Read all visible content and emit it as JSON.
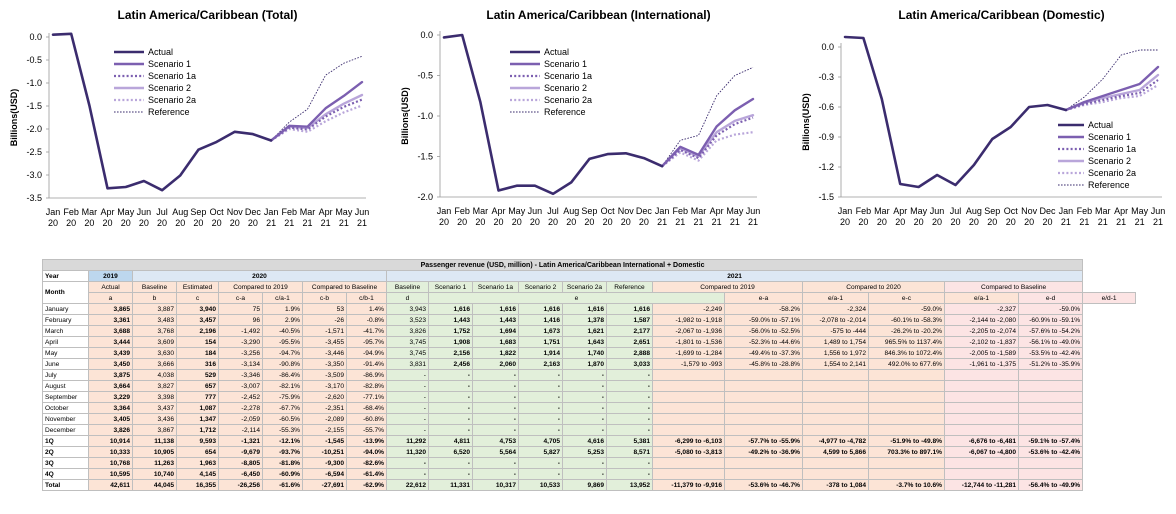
{
  "colors": {
    "actual": "#3b2c6e",
    "scenario1": "#7c5fb0",
    "scenario1a": "#7c5fb0",
    "scenario2": "#b9a6da",
    "scenario2a": "#b9a6da",
    "reference": "#3b2c6e"
  },
  "x_labels": [
    "Jan",
    "Feb",
    "Mar",
    "Apr",
    "May",
    "Jun",
    "Jul",
    "Aug",
    "Sep",
    "Oct",
    "Nov",
    "Dec",
    "Jan",
    "Feb",
    "Mar",
    "Apr",
    "May",
    "Jun"
  ],
  "x_years": [
    "20",
    "20",
    "20",
    "20",
    "20",
    "20",
    "20",
    "20",
    "20",
    "20",
    "20",
    "20",
    "21",
    "21",
    "21",
    "21",
    "21",
    "21"
  ],
  "legend_labels": [
    "Actual",
    "Scenario 1",
    "Scenario 1a",
    "Scenario 2",
    "Scenario 2a",
    "Reference"
  ],
  "chart_data": [
    {
      "type": "line",
      "title": "Latin America/Caribbean (Total)",
      "ylabel": "Billions(USD)",
      "ylim": [
        -3.5,
        0.0
      ],
      "yticks": [
        0.0,
        -0.5,
        -1.0,
        -1.5,
        -2.0,
        -2.5,
        -3.0,
        -3.5
      ],
      "ytick_labels": [
        "0.0",
        "-0.5",
        "-1.0",
        "-1.5",
        "-2.0",
        "-2.5",
        "-3.0",
        "-3.5"
      ],
      "legend_position": "top-left",
      "series": [
        {
          "name": "Actual",
          "values": [
            0.05,
            0.07,
            -1.49,
            -3.29,
            -3.26,
            -3.13,
            -3.33,
            -3.01,
            -2.45,
            -2.28,
            -2.06,
            -2.11,
            -2.25,
            null,
            null,
            null,
            null,
            null
          ]
        },
        {
          "name": "Scenario 1",
          "values": [
            null,
            null,
            null,
            null,
            null,
            null,
            null,
            null,
            null,
            null,
            null,
            null,
            -2.25,
            -1.93,
            -1.95,
            -1.55,
            -1.28,
            -0.98
          ]
        },
        {
          "name": "Scenario 1a",
          "values": [
            null,
            null,
            null,
            null,
            null,
            null,
            null,
            null,
            null,
            null,
            null,
            null,
            -2.25,
            -1.97,
            -2.01,
            -1.73,
            -1.52,
            -1.36
          ]
        },
        {
          "name": "Scenario 2",
          "values": [
            null,
            null,
            null,
            null,
            null,
            null,
            null,
            null,
            null,
            null,
            null,
            null,
            -2.25,
            -1.95,
            -1.98,
            -1.68,
            -1.45,
            -1.26
          ]
        },
        {
          "name": "Scenario 2a",
          "values": [
            null,
            null,
            null,
            null,
            null,
            null,
            null,
            null,
            null,
            null,
            null,
            null,
            -2.25,
            -2.0,
            -2.06,
            -1.83,
            -1.64,
            -1.49
          ]
        },
        {
          "name": "Reference",
          "values": [
            null,
            null,
            null,
            null,
            null,
            null,
            null,
            null,
            null,
            null,
            null,
            null,
            -2.25,
            -1.85,
            -1.57,
            -0.83,
            -0.57,
            -0.42
          ]
        }
      ]
    },
    {
      "type": "line",
      "title": "Latin America/Caribbean (International)",
      "ylabel": "Billions(USD)",
      "ylim": [
        -2.0,
        0.0
      ],
      "yticks": [
        0.0,
        -0.5,
        -1.0,
        -1.5,
        -2.0
      ],
      "ytick_labels": [
        "0.0",
        "-0.5",
        "-1.0",
        "-1.5",
        "-2.0"
      ],
      "legend_position": "top-left",
      "series": [
        {
          "name": "Actual",
          "values": [
            -0.03,
            0.0,
            -0.83,
            -1.92,
            -1.86,
            -1.86,
            -1.96,
            -1.82,
            -1.53,
            -1.47,
            -1.46,
            -1.52,
            -1.62,
            null,
            null,
            null,
            null,
            null
          ]
        },
        {
          "name": "Scenario 1",
          "values": [
            null,
            null,
            null,
            null,
            null,
            null,
            null,
            null,
            null,
            null,
            null,
            null,
            -1.62,
            -1.38,
            -1.48,
            -1.13,
            -0.93,
            -0.79
          ]
        },
        {
          "name": "Scenario 1a",
          "values": [
            null,
            null,
            null,
            null,
            null,
            null,
            null,
            null,
            null,
            null,
            null,
            null,
            -1.62,
            -1.42,
            -1.52,
            -1.24,
            -1.1,
            -1.02
          ]
        },
        {
          "name": "Scenario 2",
          "values": [
            null,
            null,
            null,
            null,
            null,
            null,
            null,
            null,
            null,
            null,
            null,
            null,
            -1.62,
            -1.4,
            -1.5,
            -1.2,
            -1.06,
            -0.99
          ]
        },
        {
          "name": "Scenario 2a",
          "values": [
            null,
            null,
            null,
            null,
            null,
            null,
            null,
            null,
            null,
            null,
            null,
            null,
            -1.62,
            -1.45,
            -1.55,
            -1.3,
            -1.23,
            -1.2
          ]
        },
        {
          "name": "Reference",
          "values": [
            null,
            null,
            null,
            null,
            null,
            null,
            null,
            null,
            null,
            null,
            null,
            null,
            -1.62,
            -1.3,
            -1.24,
            -0.75,
            -0.5,
            -0.4
          ]
        }
      ]
    },
    {
      "type": "line",
      "title": "Latin America/Caribbean (Domestic)",
      "ylabel": "Billions(USD)",
      "ylim": [
        -1.5,
        0.0
      ],
      "yticks": [
        0.0,
        -0.3,
        -0.6,
        -0.9,
        -1.2,
        -1.5
      ],
      "ytick_labels": [
        "0.0",
        "-0.3",
        "-0.6",
        "-0.9",
        "-1.2",
        "-1.5"
      ],
      "legend_position": "bottom-right",
      "series": [
        {
          "name": "Actual",
          "values": [
            0.1,
            0.09,
            -0.52,
            -1.37,
            -1.4,
            -1.28,
            -1.38,
            -1.18,
            -0.92,
            -0.8,
            -0.6,
            -0.58,
            -0.63,
            null,
            null,
            null,
            null,
            null
          ]
        },
        {
          "name": "Scenario 1",
          "values": [
            null,
            null,
            null,
            null,
            null,
            null,
            null,
            null,
            null,
            null,
            null,
            null,
            -0.63,
            -0.55,
            -0.49,
            -0.43,
            -0.37,
            -0.2
          ]
        },
        {
          "name": "Scenario 1a",
          "values": [
            null,
            null,
            null,
            null,
            null,
            null,
            null,
            null,
            null,
            null,
            null,
            null,
            -0.63,
            -0.57,
            -0.53,
            -0.49,
            -0.46,
            -0.33
          ]
        },
        {
          "name": "Scenario 2",
          "values": [
            null,
            null,
            null,
            null,
            null,
            null,
            null,
            null,
            null,
            null,
            null,
            null,
            -0.63,
            -0.56,
            -0.51,
            -0.47,
            -0.43,
            -0.28
          ]
        },
        {
          "name": "Scenario 2a",
          "values": [
            null,
            null,
            null,
            null,
            null,
            null,
            null,
            null,
            null,
            null,
            null,
            null,
            -0.63,
            -0.58,
            -0.55,
            -0.51,
            -0.49,
            -0.38
          ]
        },
        {
          "name": "Reference",
          "values": [
            null,
            null,
            null,
            null,
            null,
            null,
            null,
            null,
            null,
            null,
            null,
            null,
            -0.63,
            -0.5,
            -0.32,
            -0.08,
            -0.03,
            -0.03
          ]
        }
      ]
    }
  ],
  "table": {
    "title": "Passenger revenue (USD, million) - Latin America/Caribbean International + Domestic",
    "year_label": "Year",
    "y2019": "2019",
    "y2020": "2020",
    "y2021": "2021",
    "month_label": "Month",
    "sub_labels": [
      "Actual",
      "Baseline",
      "Estimated",
      "Compared to 2019",
      "Compared to Baseline",
      "Baseline",
      "Scenario 1",
      "Scenario 1a",
      "Scenario 2",
      "Scenario 2a",
      "Reference",
      "Compared to 2019",
      "Compared to 2020",
      "Compared to Baseline"
    ],
    "codes": [
      "a",
      "b",
      "c",
      "c-a",
      "c/a-1",
      "c-b",
      "c/b-1",
      "d",
      "e",
      "e-a",
      "e/a-1",
      "e-c",
      "e/a-1",
      "e-d",
      "e/d-1"
    ],
    "rows": [
      [
        "January",
        "3,865",
        "3,887",
        "3,940",
        "75",
        "1.9%",
        "53",
        "1.4%",
        "3,943",
        "1,616",
        "1,616",
        "1,616",
        "1,616",
        "1,616",
        "-2,249",
        "-58.2%",
        "-2,324",
        "-59.0%",
        "-2,327",
        "-59.0%"
      ],
      [
        "February",
        "3,361",
        "3,483",
        "3,457",
        "96",
        "2.9%",
        "-26",
        "-0.8%",
        "3,523",
        "1,443",
        "1,443",
        "1,416",
        "1,378",
        "1,587",
        "-1,982 to -1,918",
        "-59.0% to -57.1%",
        "-2,078 to -2,014",
        "-60.1% to -58.3%",
        "-2,144 to -2,080",
        "-60.9% to -59.1%"
      ],
      [
        "March",
        "3,688",
        "3,768",
        "2,196",
        "-1,492",
        "-40.5%",
        "-1,571",
        "-41.7%",
        "3,826",
        "1,752",
        "1,694",
        "1,673",
        "1,621",
        "2,177",
        "-2,067 to -1,936",
        "-56.0% to -52.5%",
        "-575 to -444",
        "-26.2% to -20.2%",
        "-2,205 to -2,074",
        "-57.6% to -54.2%"
      ],
      [
        "April",
        "3,444",
        "3,609",
        "154",
        "-3,290",
        "-95.5%",
        "-3,455",
        "-95.7%",
        "3,745",
        "1,908",
        "1,683",
        "1,751",
        "1,643",
        "2,651",
        "-1,801 to -1,536",
        "-52.3% to -44.6%",
        "1,489 to 1,754",
        "965.5% to 1137.4%",
        "-2,102 to -1,837",
        "-56.1% to -49.0%"
      ],
      [
        "May",
        "3,439",
        "3,630",
        "184",
        "-3,256",
        "-94.7%",
        "-3,446",
        "-94.9%",
        "3,745",
        "2,156",
        "1,822",
        "1,914",
        "1,740",
        "2,888",
        "-1,699 to -1,284",
        "-49.4% to -37.3%",
        "1,556 to 1,972",
        "846.3% to 1072.4%",
        "-2,005 to -1,589",
        "-53.5% to -42.4%"
      ],
      [
        "June",
        "3,450",
        "3,666",
        "316",
        "-3,134",
        "-90.8%",
        "-3,350",
        "-91.4%",
        "3,831",
        "2,456",
        "2,060",
        "2,163",
        "1,870",
        "3,033",
        "-1,579 to -993",
        "-45.8% to -28.8%",
        "1,554 to 2,141",
        "492.0% to 677.6%",
        "-1,961 to -1,375",
        "-51.2% to -35.9%"
      ],
      [
        "July",
        "3,875",
        "4,038",
        "529",
        "-3,346",
        "-86.4%",
        "-3,509",
        "-86.9%",
        "-",
        "-",
        "-",
        "-",
        "-",
        "-",
        "",
        "",
        "",
        "",
        "",
        ""
      ],
      [
        "August",
        "3,664",
        "3,827",
        "657",
        "-3,007",
        "-82.1%",
        "-3,170",
        "-82.8%",
        "-",
        "-",
        "-",
        "-",
        "-",
        "-",
        "",
        "",
        "",
        "",
        "",
        ""
      ],
      [
        "September",
        "3,229",
        "3,398",
        "777",
        "-2,452",
        "-75.9%",
        "-2,620",
        "-77.1%",
        "-",
        "-",
        "-",
        "-",
        "-",
        "-",
        "",
        "",
        "",
        "",
        "",
        ""
      ],
      [
        "October",
        "3,364",
        "3,437",
        "1,087",
        "-2,278",
        "-67.7%",
        "-2,351",
        "-68.4%",
        "-",
        "-",
        "-",
        "-",
        "-",
        "-",
        "",
        "",
        "",
        "",
        "",
        ""
      ],
      [
        "November",
        "3,405",
        "3,436",
        "1,347",
        "-2,059",
        "-60.5%",
        "-2,089",
        "-60.8%",
        "-",
        "-",
        "-",
        "-",
        "-",
        "-",
        "",
        "",
        "",
        "",
        "",
        ""
      ],
      [
        "December",
        "3,826",
        "3,867",
        "1,712",
        "-2,114",
        "-55.3%",
        "-2,155",
        "-55.7%",
        "-",
        "-",
        "-",
        "-",
        "-",
        "-",
        "",
        "",
        "",
        "",
        "",
        ""
      ],
      [
        "1Q",
        "10,914",
        "11,138",
        "9,593",
        "-1,321",
        "-12.1%",
        "-1,545",
        "-13.9%",
        "11,292",
        "4,811",
        "4,753",
        "4,705",
        "4,616",
        "5,381",
        "-6,299 to -6,103",
        "-57.7% to -55.9%",
        "-4,977 to -4,782",
        "-51.9% to -49.8%",
        "-6,676 to -6,481",
        "-59.1% to -57.4%"
      ],
      [
        "2Q",
        "10,333",
        "10,905",
        "654",
        "-9,679",
        "-93.7%",
        "-10,251",
        "-94.0%",
        "11,320",
        "6,520",
        "5,564",
        "5,827",
        "5,253",
        "8,571",
        "-5,080 to -3,813",
        "-49.2% to -36.9%",
        "4,599 to 5,866",
        "703.3% to 897.1%",
        "-6,067 to -4,800",
        "-53.6% to -42.4%"
      ],
      [
        "3Q",
        "10,768",
        "11,263",
        "1,963",
        "-8,805",
        "-81.8%",
        "-9,300",
        "-82.6%",
        "-",
        "-",
        "-",
        "-",
        "-",
        "-",
        "",
        "",
        "",
        "",
        "",
        ""
      ],
      [
        "4Q",
        "10,595",
        "10,740",
        "4,145",
        "-6,450",
        "-60.9%",
        "-6,594",
        "-61.4%",
        "-",
        "-",
        "-",
        "-",
        "-",
        "-",
        "",
        "",
        "",
        "",
        "",
        ""
      ],
      [
        "Total",
        "42,611",
        "44,045",
        "16,355",
        "-26,256",
        "-61.6%",
        "-27,691",
        "-62.9%",
        "22,612",
        "11,331",
        "10,317",
        "10,533",
        "9,869",
        "13,952",
        "-11,379 to -9,916",
        "-53.6% to -46.7%",
        "-378 to 1,084",
        "-3.7% to 10.6%",
        "-12,744 to -11,281",
        "-56.4% to -49.9%"
      ]
    ]
  }
}
